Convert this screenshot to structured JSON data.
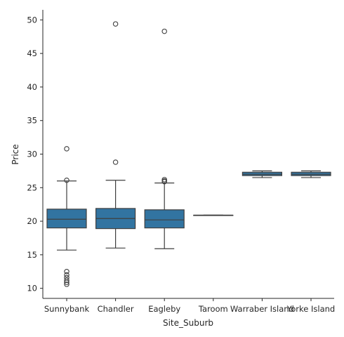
{
  "chart_data": {
    "type": "box",
    "title": "",
    "xlabel": "Site_Suburb",
    "ylabel": "Price",
    "ylim": [
      8.5,
      51.5
    ],
    "yticks": [
      10,
      15,
      20,
      25,
      30,
      35,
      40,
      45,
      50
    ],
    "grid": false,
    "legend": "none",
    "box_color": "#3274a1",
    "edge_color": "#3f3f3f",
    "categories": [
      "Sunnybank",
      "Chandler",
      "Eagleby",
      "Taroom",
      "Warraber Island",
      "Yorke Island"
    ],
    "boxes": [
      {
        "category": "Sunnybank",
        "whisker_low": 15.7,
        "q1": 19.0,
        "median": 20.3,
        "q3": 21.8,
        "whisker_high": 26.0,
        "outliers": [
          30.8,
          26.1,
          12.5,
          12.0,
          11.6,
          11.2,
          10.9,
          10.6
        ]
      },
      {
        "category": "Chandler",
        "whisker_low": 16.0,
        "q1": 18.9,
        "median": 20.4,
        "q3": 21.9,
        "whisker_high": 26.1,
        "outliers": [
          49.4,
          28.8
        ]
      },
      {
        "category": "Eagleby",
        "whisker_low": 15.9,
        "q1": 19.0,
        "median": 20.2,
        "q3": 21.7,
        "whisker_high": 25.7,
        "outliers": [
          48.3,
          26.2,
          26.0,
          25.9
        ]
      },
      {
        "category": "Taroom",
        "whisker_low": 20.9,
        "q1": 20.9,
        "median": 20.9,
        "q3": 20.9,
        "whisker_high": 20.9,
        "outliers": []
      },
      {
        "category": "Warraber Island",
        "whisker_low": 26.5,
        "q1": 26.8,
        "median": 27.0,
        "q3": 27.3,
        "whisker_high": 27.5,
        "outliers": []
      },
      {
        "category": "Yorke Island",
        "whisker_low": 26.5,
        "q1": 26.8,
        "median": 27.0,
        "q3": 27.3,
        "whisker_high": 27.5,
        "outliers": []
      }
    ]
  }
}
